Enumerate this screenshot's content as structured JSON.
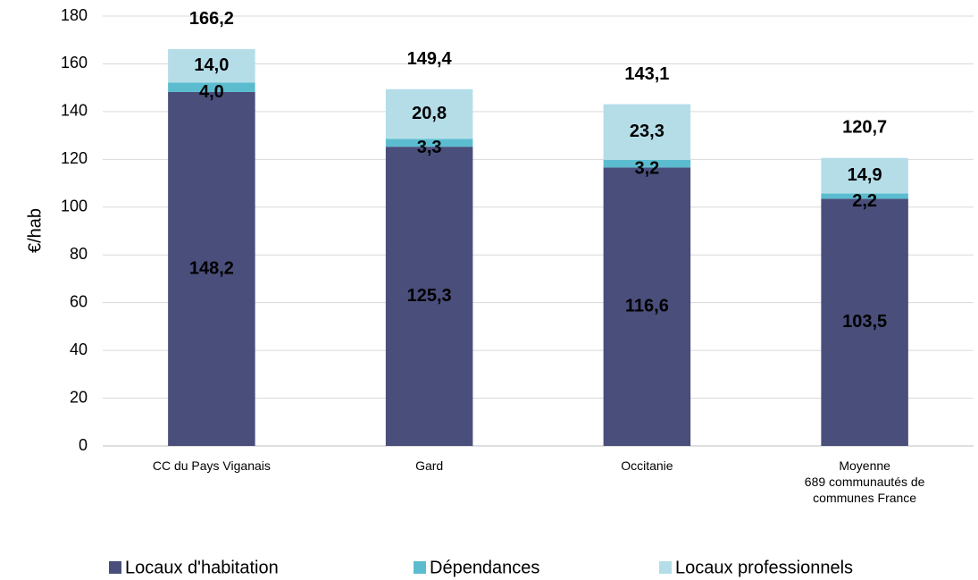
{
  "chart_data": {
    "type": "stacked_bar",
    "y_label": "€/hab",
    "categories": [
      "CC du Pays Viganais",
      "Gard",
      "Occitanie",
      "Moyenne\n689 communautés de\ncommunes France"
    ],
    "series": [
      {
        "name": "Locaux d'habitation",
        "color": "#4a4e7b",
        "values": [
          148.2,
          125.3,
          116.6,
          103.5
        ],
        "value_labels": [
          "148,2",
          "125,3",
          "116,6",
          "103,5"
        ]
      },
      {
        "name": "Dépendances",
        "color": "#5cbccf",
        "values": [
          4.0,
          3.3,
          3.2,
          2.2
        ],
        "value_labels": [
          "4,0",
          "3,3",
          "3,2",
          "2,2"
        ]
      },
      {
        "name": "Locaux professionnels",
        "color": "#b4dde8",
        "values": [
          14.0,
          20.8,
          23.3,
          14.9
        ],
        "value_labels": [
          "14,0",
          "20,8",
          "23,3",
          "14,9"
        ]
      }
    ],
    "totals": [
      166.2,
      149.4,
      143.1,
      120.7
    ],
    "totals_labels": [
      "166,2",
      "149,4",
      "143,1",
      "120,7"
    ],
    "ylim": [
      0,
      180
    ],
    "yticks": [
      0,
      20,
      40,
      60,
      80,
      100,
      120,
      140,
      160,
      180
    ],
    "grid": true,
    "legend": "bottom"
  }
}
